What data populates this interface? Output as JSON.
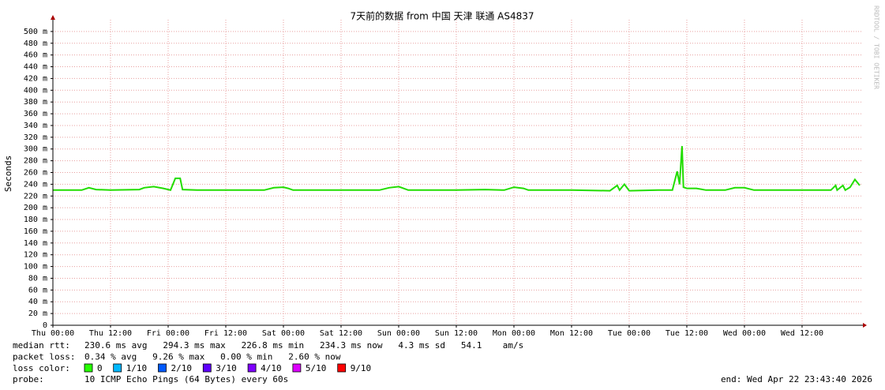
{
  "chart_data": {
    "type": "line",
    "title": "7天前的数据 from 中国 天津 联通 AS4837",
    "y_label": "Seconds",
    "watermark": "RRDTOOL / TOBI OETIKER",
    "color": "#22dd00",
    "grid": true,
    "xlim": [
      0,
      168.5
    ],
    "xticks": [
      {
        "value": 0,
        "label": "Thu 00:00"
      },
      {
        "value": 12,
        "label": "Thu 12:00"
      },
      {
        "value": 24,
        "label": "Fri 00:00"
      },
      {
        "value": 36,
        "label": "Fri 12:00"
      },
      {
        "value": 48,
        "label": "Sat 00:00"
      },
      {
        "value": 60,
        "label": "Sat 12:00"
      },
      {
        "value": 72,
        "label": "Sun 00:00"
      },
      {
        "value": 84,
        "label": "Sun 12:00"
      },
      {
        "value": 96,
        "label": "Mon 00:00"
      },
      {
        "value": 108,
        "label": "Mon 12:00"
      },
      {
        "value": 120,
        "label": "Tue 00:00"
      },
      {
        "value": 132,
        "label": "Tue 12:00"
      },
      {
        "value": 144,
        "label": "Wed 00:00"
      },
      {
        "value": 156,
        "label": "Wed 12:00"
      }
    ],
    "ylim": [
      0,
      520
    ],
    "yticks": [
      0,
      {
        "value": 20,
        "label": "20 m"
      },
      {
        "value": 40,
        "label": "40 m"
      },
      {
        "value": 60,
        "label": "60 m"
      },
      {
        "value": 80,
        "label": "80 m"
      },
      {
        "value": 100,
        "label": "100 m"
      },
      {
        "value": 120,
        "label": "120 m"
      },
      {
        "value": 140,
        "label": "140 m"
      },
      {
        "value": 160,
        "label": "160 m"
      },
      {
        "value": 180,
        "label": "180 m"
      },
      {
        "value": 200,
        "label": "200 m"
      },
      {
        "value": 220,
        "label": "220 m"
      },
      {
        "value": 240,
        "label": "240 m"
      },
      {
        "value": 260,
        "label": "260 m"
      },
      {
        "value": 280,
        "label": "280 m"
      },
      {
        "value": 300,
        "label": "300 m"
      },
      {
        "value": 320,
        "label": "320 m"
      },
      {
        "value": 340,
        "label": "340 m"
      },
      {
        "value": 360,
        "label": "360 m"
      },
      {
        "value": 380,
        "label": "380 m"
      },
      {
        "value": 400,
        "label": "400 m"
      },
      {
        "value": 420,
        "label": "420 m"
      },
      {
        "value": 440,
        "label": "440 m"
      },
      {
        "value": 460,
        "label": "460 m"
      },
      {
        "value": 480,
        "label": "480 m"
      },
      {
        "value": 500,
        "label": "500 m"
      }
    ],
    "x": [
      0,
      6,
      7.5,
      9,
      12,
      18,
      19,
      21,
      23,
      24.5,
      25.5,
      26.5,
      27,
      30,
      36,
      44,
      46,
      48,
      49,
      50,
      60,
      68,
      70,
      72,
      73,
      74,
      84,
      90,
      94,
      96,
      98,
      99,
      108,
      116,
      117.5,
      118,
      119,
      120,
      126,
      129,
      130,
      130.5,
      131,
      131.3,
      132,
      134,
      136,
      140,
      142,
      144,
      146,
      156,
      162,
      163,
      163.3,
      164.5,
      165,
      166,
      167,
      168
    ],
    "values": [
      230,
      230,
      234,
      231,
      230,
      231,
      234,
      236,
      233,
      230,
      250,
      250,
      231,
      230,
      230,
      230,
      234,
      235,
      233,
      230,
      230,
      230,
      234,
      236,
      233,
      230,
      230,
      231,
      230,
      235,
      233,
      230,
      230,
      229,
      238,
      230,
      240,
      229,
      230,
      230,
      262,
      240,
      305,
      235,
      233,
      233,
      230,
      230,
      234,
      234,
      230,
      230,
      230,
      238,
      230,
      238,
      230,
      235,
      248,
      238
    ],
    "stats": [
      {
        "label": "median rtt:",
        "text": "230.6 ms avg   294.3 ms max   226.8 ms min   234.3 ms now   4.3 ms sd   54.1    am/s"
      },
      {
        "label": "packet loss:",
        "text": "0.34 % avg   9.26 % max   0.00 % min   2.60 % now"
      }
    ],
    "loss_label": "loss color:",
    "loss_colors": [
      {
        "label": "0",
        "color": "#26ff00"
      },
      {
        "label": "1/10",
        "color": "#00b8ff"
      },
      {
        "label": "2/10",
        "color": "#0059ff"
      },
      {
        "label": "3/10",
        "color": "#5e00ff"
      },
      {
        "label": "4/10",
        "color": "#7e00ff"
      },
      {
        "label": "5/10",
        "color": "#dd00ff"
      },
      {
        "label": "9/10",
        "color": "#ff0000"
      }
    ],
    "probe_label": "probe:",
    "probe": "10 ICMP Echo Pings (64 Bytes) every 60s",
    "end": "end: Wed Apr 22 23:43:40 2026"
  }
}
